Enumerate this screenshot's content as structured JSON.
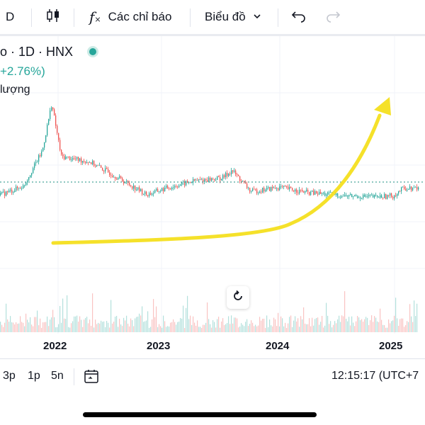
{
  "toolbar": {
    "interval_label": "D",
    "indicators_label": "Các chỉ báo",
    "chart_label": "Biểu đồ"
  },
  "legend": {
    "symbol_title": "o · 1D · HNX",
    "change_pct": "+2.76%)",
    "volume_label": "lượng",
    "status_color": "#26a69a"
  },
  "axis": {
    "x_labels": [
      "2022",
      "2023",
      "2024",
      "2025"
    ]
  },
  "bottom": {
    "ranges": [
      "3p",
      "1p",
      "5n"
    ],
    "clock": "12:15:17 (UTC+7"
  },
  "chart_data": {
    "type": "line",
    "x": [
      "2021-07",
      "2021-10",
      "2021-12",
      "2022-01",
      "2022-02",
      "2022-05",
      "2022-08",
      "2022-11",
      "2023-01",
      "2023-04",
      "2023-07",
      "2023-08",
      "2023-10",
      "2024-01",
      "2024-04",
      "2024-08",
      "2024-11",
      "2025-01",
      "2025-02"
    ],
    "series": [
      {
        "values": [
          0.12,
          0.22,
          0.55,
          1.0,
          0.5,
          0.45,
          0.3,
          0.14,
          0.2,
          0.27,
          0.3,
          0.37,
          0.17,
          0.21,
          0.16,
          0.13,
          0.12,
          0.13,
          0.2
        ]
      }
    ],
    "reference_line": "dotted-teal",
    "colors": {
      "up": "#26a69a",
      "down": "#ef5350",
      "annotation": "#f5e12a"
    },
    "annotation": "yellow-arrow-trend-up"
  }
}
